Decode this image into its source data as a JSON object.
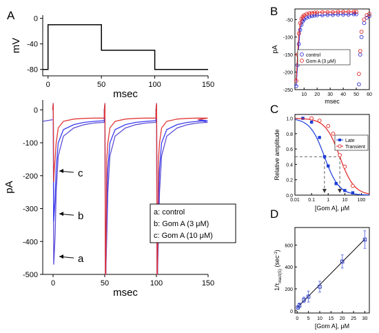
{
  "chart_data": [
    {
      "panel": "A",
      "part": "protocol",
      "type": "line",
      "ylabel": "mV",
      "xlabel": "msec",
      "xticks": [
        0,
        50,
        100,
        150
      ],
      "yticks": [
        0,
        -40,
        -80
      ],
      "xlim": [
        -5,
        150
      ],
      "ylim": [
        -90,
        5
      ],
      "x": [
        -5,
        0,
        0,
        50,
        50,
        100,
        100,
        150
      ],
      "y": [
        -80,
        -80,
        -10,
        -10,
        -50,
        -50,
        -80,
        -80
      ]
    },
    {
      "panel": "A",
      "part": "currents",
      "type": "line",
      "ylabel": "pA",
      "xlabel": "msec",
      "xticks": [
        0,
        50,
        100,
        150
      ],
      "yticks": [
        0,
        -100,
        -200,
        -300,
        -400,
        -500
      ],
      "xlim": [
        -10,
        150
      ],
      "ylim": [
        -500,
        30
      ],
      "legend": [
        "a: control",
        "b: Gom A (3 μM)",
        "c: Gom A (10 μM)"
      ],
      "annotations": [
        {
          "label": "c",
          "x": 4,
          "y": -190
        },
        {
          "label": "b",
          "x": 4,
          "y": -320
        },
        {
          "label": "a",
          "x": 4,
          "y": -450
        }
      ],
      "series": [
        {
          "color": "#5b4ed6",
          "peak": -450,
          "plateau": -38,
          "x": [
            0,
            1,
            2,
            3,
            5,
            10,
            20,
            30,
            40,
            49
          ],
          "y": [
            0,
            -450,
            -380,
            -250,
            -140,
            -80,
            -55,
            -45,
            -40,
            -38
          ]
        },
        {
          "color": "#3a3af0",
          "peak": -320,
          "plateau": -33,
          "x": [
            0,
            1,
            2,
            3,
            5,
            10,
            20,
            30,
            40,
            49
          ],
          "y": [
            0,
            -320,
            -270,
            -180,
            -100,
            -60,
            -45,
            -38,
            -35,
            -33
          ]
        },
        {
          "color": "#e03a3a",
          "peak": -190,
          "plateau": -25,
          "x": [
            0,
            1,
            2,
            3,
            5,
            10,
            20,
            30,
            40,
            49
          ],
          "y": [
            0,
            -190,
            -150,
            -100,
            -55,
            -35,
            -28,
            -26,
            -25,
            -25
          ]
        }
      ]
    },
    {
      "panel": "B",
      "type": "scatter",
      "ylabel": "pA",
      "xlabel": "msec",
      "xticks": [
        10,
        20,
        30,
        40,
        50,
        60
      ],
      "yticks": [
        -50,
        -100,
        -150,
        -200,
        -250
      ],
      "xlim": [
        3,
        60
      ],
      "ylim": [
        -250,
        -20
      ],
      "legend": [
        "control",
        "Gom A (3 μM)"
      ],
      "series": [
        {
          "name": "control",
          "color": "#2a2ad0",
          "fit_color": "#2a2ad0",
          "x": [
            4,
            5,
            6,
            7,
            8,
            9,
            10,
            12,
            14,
            16,
            18,
            20,
            24,
            28,
            32,
            36,
            40,
            44,
            48,
            50,
            52,
            53,
            54,
            56,
            58,
            60
          ],
          "y": [
            -240,
            -180,
            -120,
            -80,
            -65,
            -55,
            -50,
            -45,
            -42,
            -40,
            -39,
            -38,
            -38,
            -37,
            -37,
            -36,
            -36,
            -36,
            -35,
            -35,
            -235,
            -150,
            -100,
            -60,
            -45,
            -40
          ]
        },
        {
          "name": "Gom A (3 μM)",
          "color": "#e02020",
          "fit_color": "#e02020",
          "x": [
            4,
            5,
            6,
            7,
            8,
            9,
            10,
            12,
            14,
            16,
            18,
            20,
            24,
            28,
            32,
            36,
            40,
            44,
            48,
            50,
            52,
            53,
            54,
            56,
            58,
            60
          ],
          "y": [
            -225,
            -150,
            -90,
            -60,
            -48,
            -42,
            -38,
            -34,
            -32,
            -31,
            -30,
            -30,
            -29,
            -29,
            -29,
            -28,
            -28,
            -28,
            -28,
            -28,
            -205,
            -140,
            -85,
            -50,
            -38,
            -34
          ]
        }
      ]
    },
    {
      "panel": "C",
      "type": "line",
      "ylabel": "Relative amplitude",
      "xlabel": "[Gom A], μM",
      "xscale": "log",
      "xticks": [
        0.01,
        0.1,
        1,
        10,
        100
      ],
      "xticklabels": [
        "0.01",
        "0.1",
        "1",
        "10",
        "100"
      ],
      "yticks": [
        0.0,
        0.2,
        0.4,
        0.6,
        0.8,
        1.0
      ],
      "yticklabels": [
        "0.0",
        "0.2",
        "0.4",
        "0.6",
        "0.8",
        "1.0"
      ],
      "xlim": [
        0.01,
        300
      ],
      "ylim": [
        0,
        1.05
      ],
      "legend": [
        "Late",
        "Transient"
      ],
      "series": [
        {
          "name": "Late",
          "color": "#1a3ad8",
          "marker": "square",
          "ic50": 0.6,
          "x": [
            0.03,
            0.1,
            0.3,
            0.6,
            1,
            3,
            10,
            30
          ],
          "y": [
            1.0,
            0.95,
            0.75,
            0.5,
            0.38,
            0.15,
            0.06,
            0.03
          ]
        },
        {
          "name": "Transient",
          "color": "#e02020",
          "marker": "circle",
          "ic50": 5.0,
          "x": [
            0.1,
            0.3,
            1,
            2,
            3,
            5,
            10,
            30
          ],
          "y": [
            1.0,
            0.97,
            0.9,
            0.8,
            0.68,
            0.52,
            0.37,
            0.12
          ]
        }
      ],
      "reference_line": {
        "y": 0.5,
        "x_markers": [
          0.6,
          5.0
        ]
      }
    },
    {
      "panel": "D",
      "type": "scatter",
      "xlabel": "[Gom A], μM",
      "xticks": [
        0,
        5,
        10,
        15,
        20,
        25,
        30
      ],
      "yticks": [
        0,
        200,
        400,
        600
      ],
      "xlim": [
        -1,
        32
      ],
      "ylim": [
        -20,
        760
      ],
      "x": [
        0.3,
        1,
        3,
        5,
        10,
        20,
        30
      ],
      "y": [
        30,
        50,
        100,
        130,
        220,
        450,
        650
      ],
      "yerr": [
        15,
        20,
        25,
        50,
        50,
        60,
        80
      ],
      "fit": {
        "slope": 20.8,
        "intercept": 30
      }
    }
  ],
  "labels": {
    "panel_a": "A",
    "panel_b": "B",
    "panel_c": "C",
    "panel_d": "D",
    "d_ylabel_prefix": "1/τ",
    "d_ylabel_sub": "inact(S)",
    "d_ylabel_suffix": " (sec",
    "d_ylabel_sup": "-1",
    "d_ylabel_end": ")"
  }
}
